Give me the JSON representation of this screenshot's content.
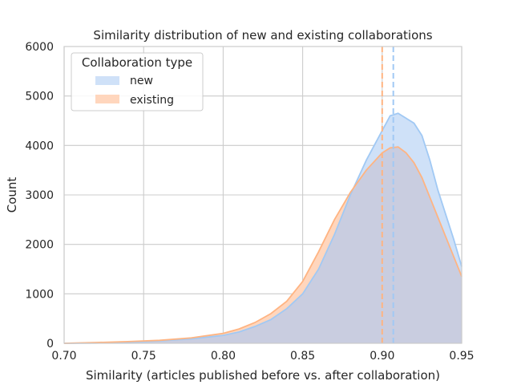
{
  "chart_data": {
    "type": "area",
    "title": "Similarity distribution of new and existing collaborations",
    "xlabel": "Similarity (articles published before vs. after collaboration)",
    "ylabel": "Count",
    "xlim": [
      0.7,
      0.95
    ],
    "ylim": [
      0,
      6000
    ],
    "x_ticks": [
      "0.70",
      "0.75",
      "0.80",
      "0.85",
      "0.90",
      "0.95"
    ],
    "y_ticks": [
      "0",
      "1000",
      "2000",
      "3000",
      "4000",
      "5000",
      "6000"
    ],
    "grid": true,
    "legend": {
      "title": "Collaboration type",
      "position": "top-left",
      "entries": [
        "new",
        "existing"
      ]
    },
    "series": [
      {
        "name": "new",
        "color": "#a1c9f4",
        "fill": "#cfe1f8",
        "mean": 0.907,
        "x": [
          0.7,
          0.72,
          0.74,
          0.76,
          0.78,
          0.8,
          0.81,
          0.82,
          0.83,
          0.84,
          0.85,
          0.86,
          0.87,
          0.88,
          0.89,
          0.9,
          0.905,
          0.91,
          0.915,
          0.92,
          0.925,
          0.93,
          0.935,
          0.94,
          0.945,
          0.95
        ],
        "y": [
          0,
          5,
          20,
          50,
          90,
          160,
          230,
          340,
          480,
          700,
          1000,
          1500,
          2200,
          3000,
          3700,
          4300,
          4600,
          4650,
          4550,
          4450,
          4200,
          3700,
          3100,
          2600,
          2100,
          1550
        ]
      },
      {
        "name": "existing",
        "color": "#ffb482",
        "fill": "#ffd6bd",
        "mean": 0.9,
        "x": [
          0.7,
          0.72,
          0.74,
          0.76,
          0.78,
          0.8,
          0.81,
          0.82,
          0.83,
          0.84,
          0.85,
          0.86,
          0.87,
          0.88,
          0.89,
          0.9,
          0.905,
          0.91,
          0.915,
          0.92,
          0.925,
          0.93,
          0.935,
          0.94,
          0.945,
          0.95
        ],
        "y": [
          0,
          15,
          35,
          60,
          110,
          200,
          290,
          420,
          600,
          850,
          1250,
          1850,
          2500,
          3050,
          3500,
          3850,
          3950,
          3970,
          3850,
          3650,
          3350,
          2950,
          2550,
          2150,
          1750,
          1350
        ]
      }
    ],
    "overlap_fill": "#c9cde0"
  }
}
